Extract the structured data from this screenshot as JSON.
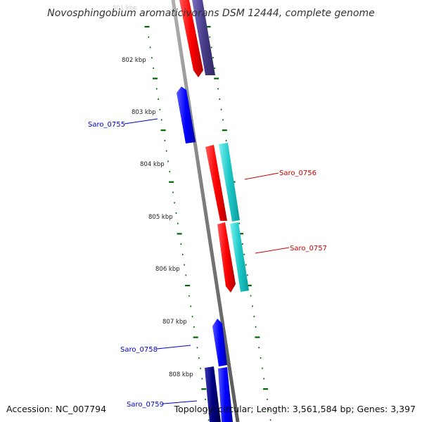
{
  "title": "Novosphingobium aromaticivorans DSM 12444, complete genome",
  "faded_tick": "801 kbp",
  "ticks": [
    "802 kbp",
    "803 kbp",
    "804 kbp",
    "805 kbp",
    "806 kbp",
    "807 kbp",
    "808 kbp"
  ],
  "genes": [
    {
      "label": "Saro_0755",
      "strand": "-",
      "color": "#0000ee"
    },
    {
      "label": "Saro_0756",
      "strand": "+",
      "color": "#cc0000"
    },
    {
      "label": "Saro_0757",
      "strand": "+",
      "color": "#cc0000"
    },
    {
      "label": "Saro_0758",
      "strand": "-",
      "color": "#0000ee"
    },
    {
      "label": "Saro_0759",
      "strand": "-",
      "color": "#0000ee"
    }
  ],
  "colors": {
    "forward_gene": "#ff0000",
    "forward_cds": "#00cccc",
    "reverse_gene": "#0000ff",
    "reverse_cds": "#000080",
    "purple_cds": "#483d8b",
    "backbone": "#808080",
    "tick": "#006400"
  },
  "footer": {
    "accession": "Accession: NC_007794",
    "summary": "Topology: circular; Length: 3,561,584 bp; Genes: 3,397"
  }
}
